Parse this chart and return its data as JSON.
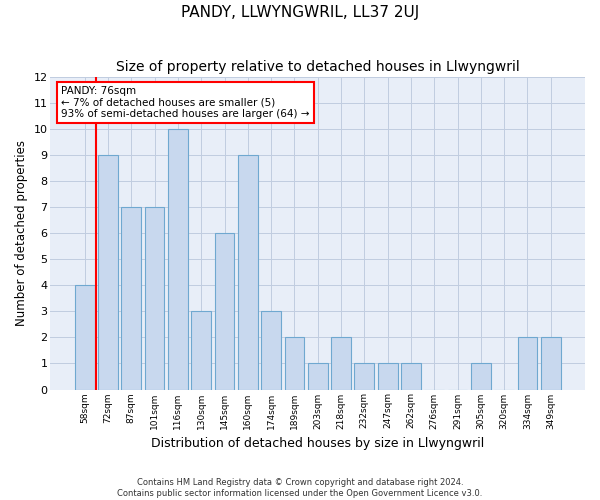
{
  "title": "PANDY, LLWYNGWRIL, LL37 2UJ",
  "subtitle": "Size of property relative to detached houses in Llwyngwril",
  "xlabel": "Distribution of detached houses by size in Llwyngwril",
  "ylabel": "Number of detached properties",
  "categories": [
    "58sqm",
    "72sqm",
    "87sqm",
    "101sqm",
    "116sqm",
    "130sqm",
    "145sqm",
    "160sqm",
    "174sqm",
    "189sqm",
    "203sqm",
    "218sqm",
    "232sqm",
    "247sqm",
    "262sqm",
    "276sqm",
    "291sqm",
    "305sqm",
    "320sqm",
    "334sqm",
    "349sqm"
  ],
  "values": [
    4,
    9,
    7,
    7,
    10,
    3,
    6,
    9,
    3,
    2,
    1,
    2,
    1,
    1,
    1,
    0,
    0,
    1,
    0,
    2,
    2
  ],
  "bar_color": "#c8d8ee",
  "bar_edge_color": "#6fa8d0",
  "red_line_x": 0.5,
  "ylim": [
    0,
    12
  ],
  "yticks": [
    0,
    1,
    2,
    3,
    4,
    5,
    6,
    7,
    8,
    9,
    10,
    11,
    12
  ],
  "annotation_text": "PANDY: 76sqm\n← 7% of detached houses are smaller (5)\n93% of semi-detached houses are larger (64) →",
  "annotation_box_color": "white",
  "annotation_box_edge_color": "red",
  "background_color": "#e8eef8",
  "grid_color": "#c0cce0",
  "footer_text": "Contains HM Land Registry data © Crown copyright and database right 2024.\nContains public sector information licensed under the Open Government Licence v3.0.",
  "title_fontsize": 11,
  "subtitle_fontsize": 10,
  "xlabel_fontsize": 9,
  "ylabel_fontsize": 8.5,
  "bar_width": 0.85
}
